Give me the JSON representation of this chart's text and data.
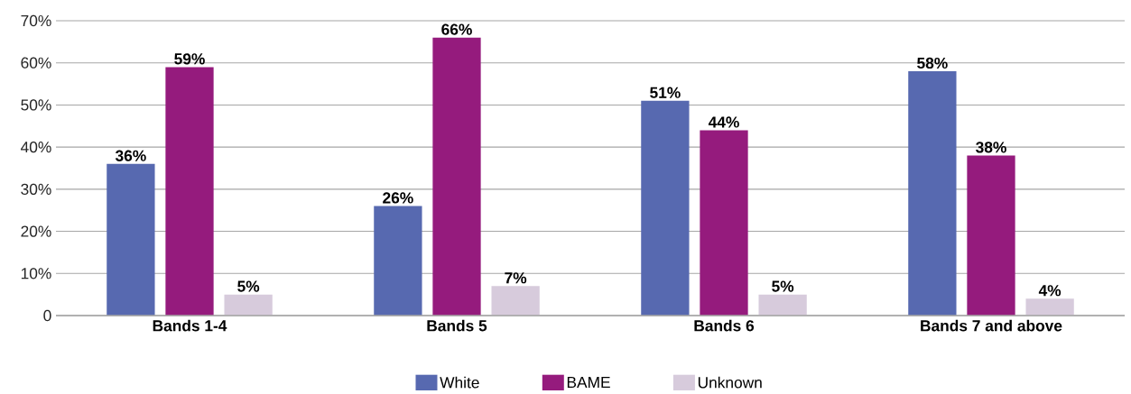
{
  "chart_data": {
    "type": "bar",
    "categories": [
      "Bands 1-4",
      "Bands 5",
      "Bands 6",
      "Bands 7 and above"
    ],
    "series": [
      {
        "name": "White",
        "color": "#5769b0",
        "values": [
          36,
          26,
          51,
          58
        ],
        "value_labels": [
          "36%",
          "26%",
          "51%",
          "58%"
        ]
      },
      {
        "name": "BAME",
        "color": "#951b7d",
        "values": [
          59,
          66,
          44,
          38
        ],
        "value_labels": [
          "59%",
          "66%",
          "44%",
          "38%"
        ]
      },
      {
        "name": "Unknown",
        "color": "#d7cbdc",
        "values": [
          5,
          7,
          5,
          4
        ],
        "value_labels": [
          "5%",
          "7%",
          "5%",
          "4%"
        ]
      }
    ],
    "ylim": [
      0,
      70
    ],
    "yticks": [
      {
        "value": 0,
        "label": "0"
      },
      {
        "value": 10,
        "label": "10%"
      },
      {
        "value": 20,
        "label": "20%"
      },
      {
        "value": 30,
        "label": "30%"
      },
      {
        "value": 40,
        "label": "40%"
      },
      {
        "value": 50,
        "label": "50%"
      },
      {
        "value": 60,
        "label": "60%"
      },
      {
        "value": 70,
        "label": "70%"
      }
    ],
    "grid": "y",
    "legend": "bottom"
  }
}
